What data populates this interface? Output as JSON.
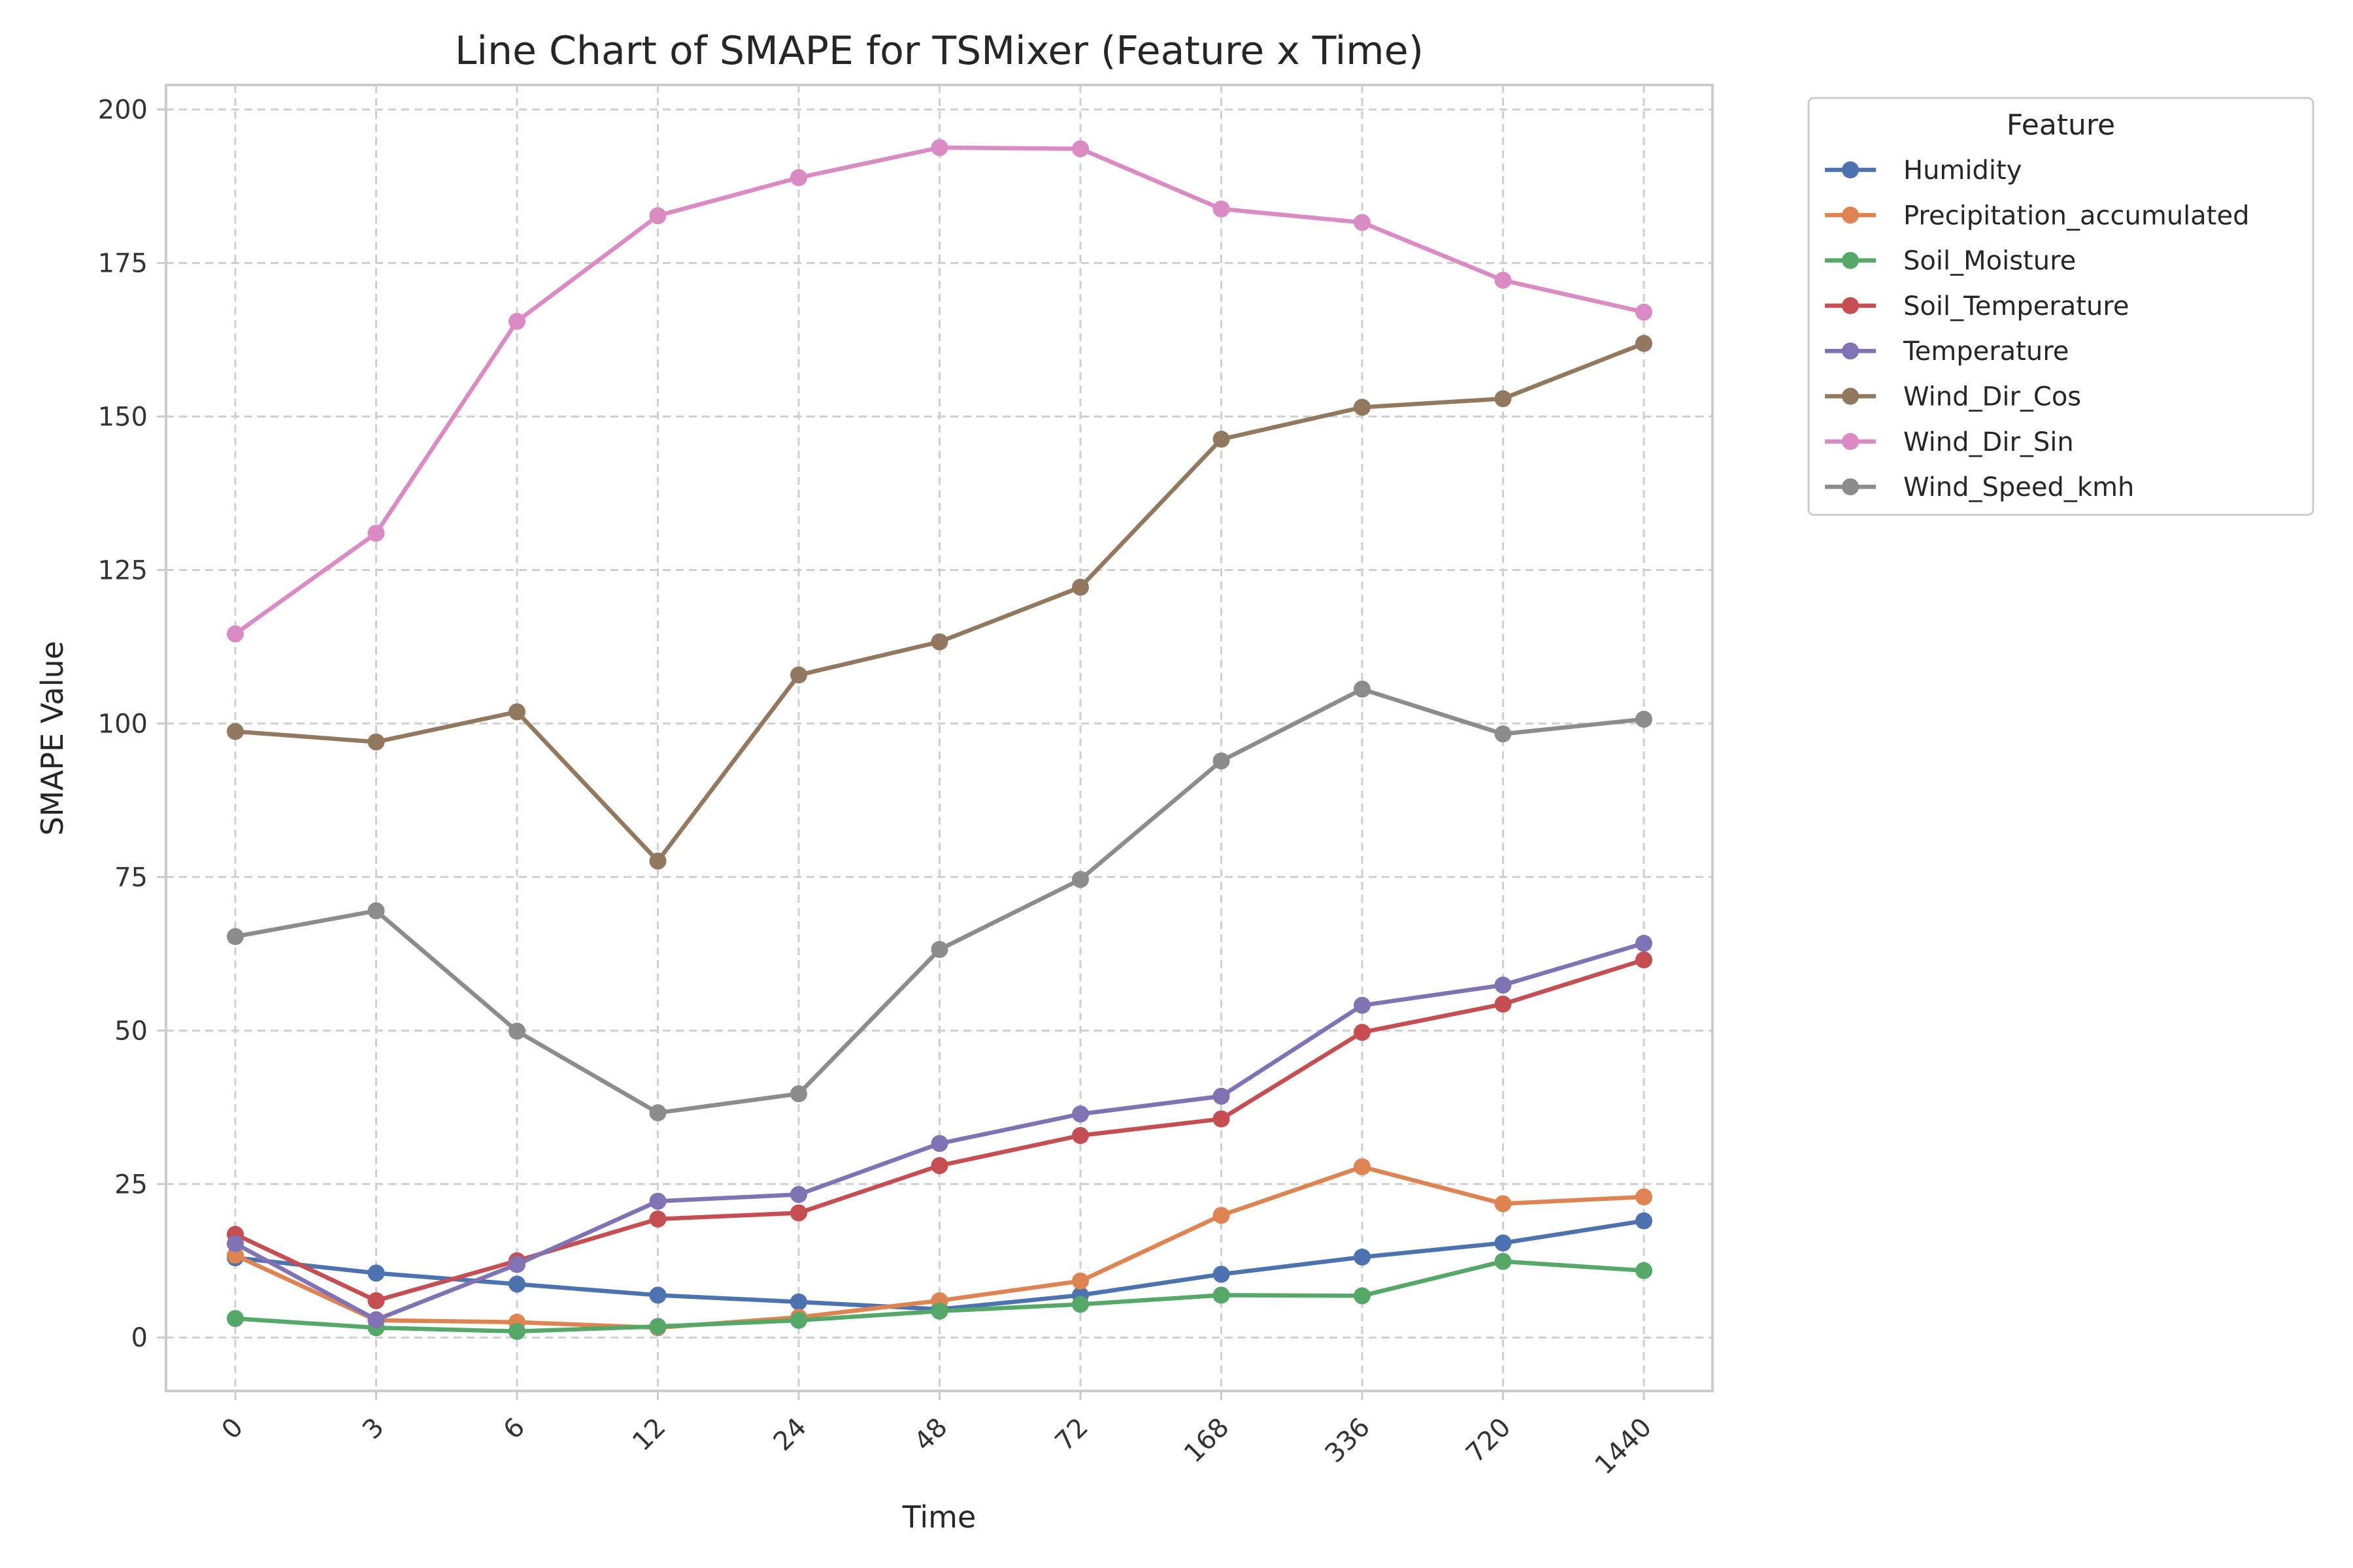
{
  "chart_data": {
    "type": "line",
    "title": "Line Chart of SMAPE for TSMixer (Feature x Time)",
    "xlabel": "Time",
    "ylabel": "SMAPE Value",
    "x": [
      "0",
      "3",
      "6",
      "12",
      "24",
      "48",
      "72",
      "168",
      "336",
      "720",
      "1440"
    ],
    "ylim": [
      -8.7,
      204
    ],
    "yticks": [
      0,
      25,
      50,
      75,
      100,
      125,
      150,
      175,
      200
    ],
    "grid": true,
    "legend_title": "Feature",
    "legend_position": "outside-right",
    "series": [
      {
        "name": "Humidity",
        "color": "#4c72b0",
        "values": [
          13.0,
          10.5,
          8.7,
          6.9,
          5.8,
          4.6,
          6.9,
          10.3,
          13.1,
          15.4,
          19.0
        ]
      },
      {
        "name": "Precipitation_accumulated",
        "color": "#dd8452",
        "values": [
          13.4,
          2.8,
          2.5,
          1.6,
          3.3,
          6.0,
          9.2,
          19.9,
          27.8,
          21.8,
          22.9
        ]
      },
      {
        "name": "Soil_Moisture",
        "color": "#55a868",
        "values": [
          3.1,
          1.6,
          1.0,
          1.8,
          2.8,
          4.3,
          5.4,
          6.9,
          6.8,
          12.4,
          10.9
        ]
      },
      {
        "name": "Soil_Temperature",
        "color": "#c44e52",
        "values": [
          16.8,
          6.0,
          12.5,
          19.3,
          20.3,
          28.0,
          32.9,
          35.6,
          49.7,
          54.3,
          61.5
        ]
      },
      {
        "name": "Temperature",
        "color": "#8172b3",
        "values": [
          15.3,
          2.9,
          11.9,
          22.2,
          23.3,
          31.6,
          36.4,
          39.3,
          54.1,
          57.4,
          64.2
        ]
      },
      {
        "name": "Wind_Dir_Cos",
        "color": "#937860",
        "values": [
          98.7,
          97.0,
          101.9,
          77.6,
          107.9,
          113.3,
          122.2,
          146.3,
          151.5,
          152.9,
          161.9
        ]
      },
      {
        "name": "Wind_Dir_Sin",
        "color": "#da8bc3",
        "values": [
          114.6,
          131.0,
          165.5,
          182.7,
          188.9,
          193.8,
          193.6,
          183.8,
          181.6,
          172.2,
          167.0
        ]
      },
      {
        "name": "Wind_Speed_kmh",
        "color": "#8c8c8c",
        "values": [
          65.3,
          69.5,
          49.9,
          36.6,
          39.7,
          63.2,
          74.6,
          93.9,
          105.6,
          98.3,
          100.7
        ]
      }
    ]
  }
}
